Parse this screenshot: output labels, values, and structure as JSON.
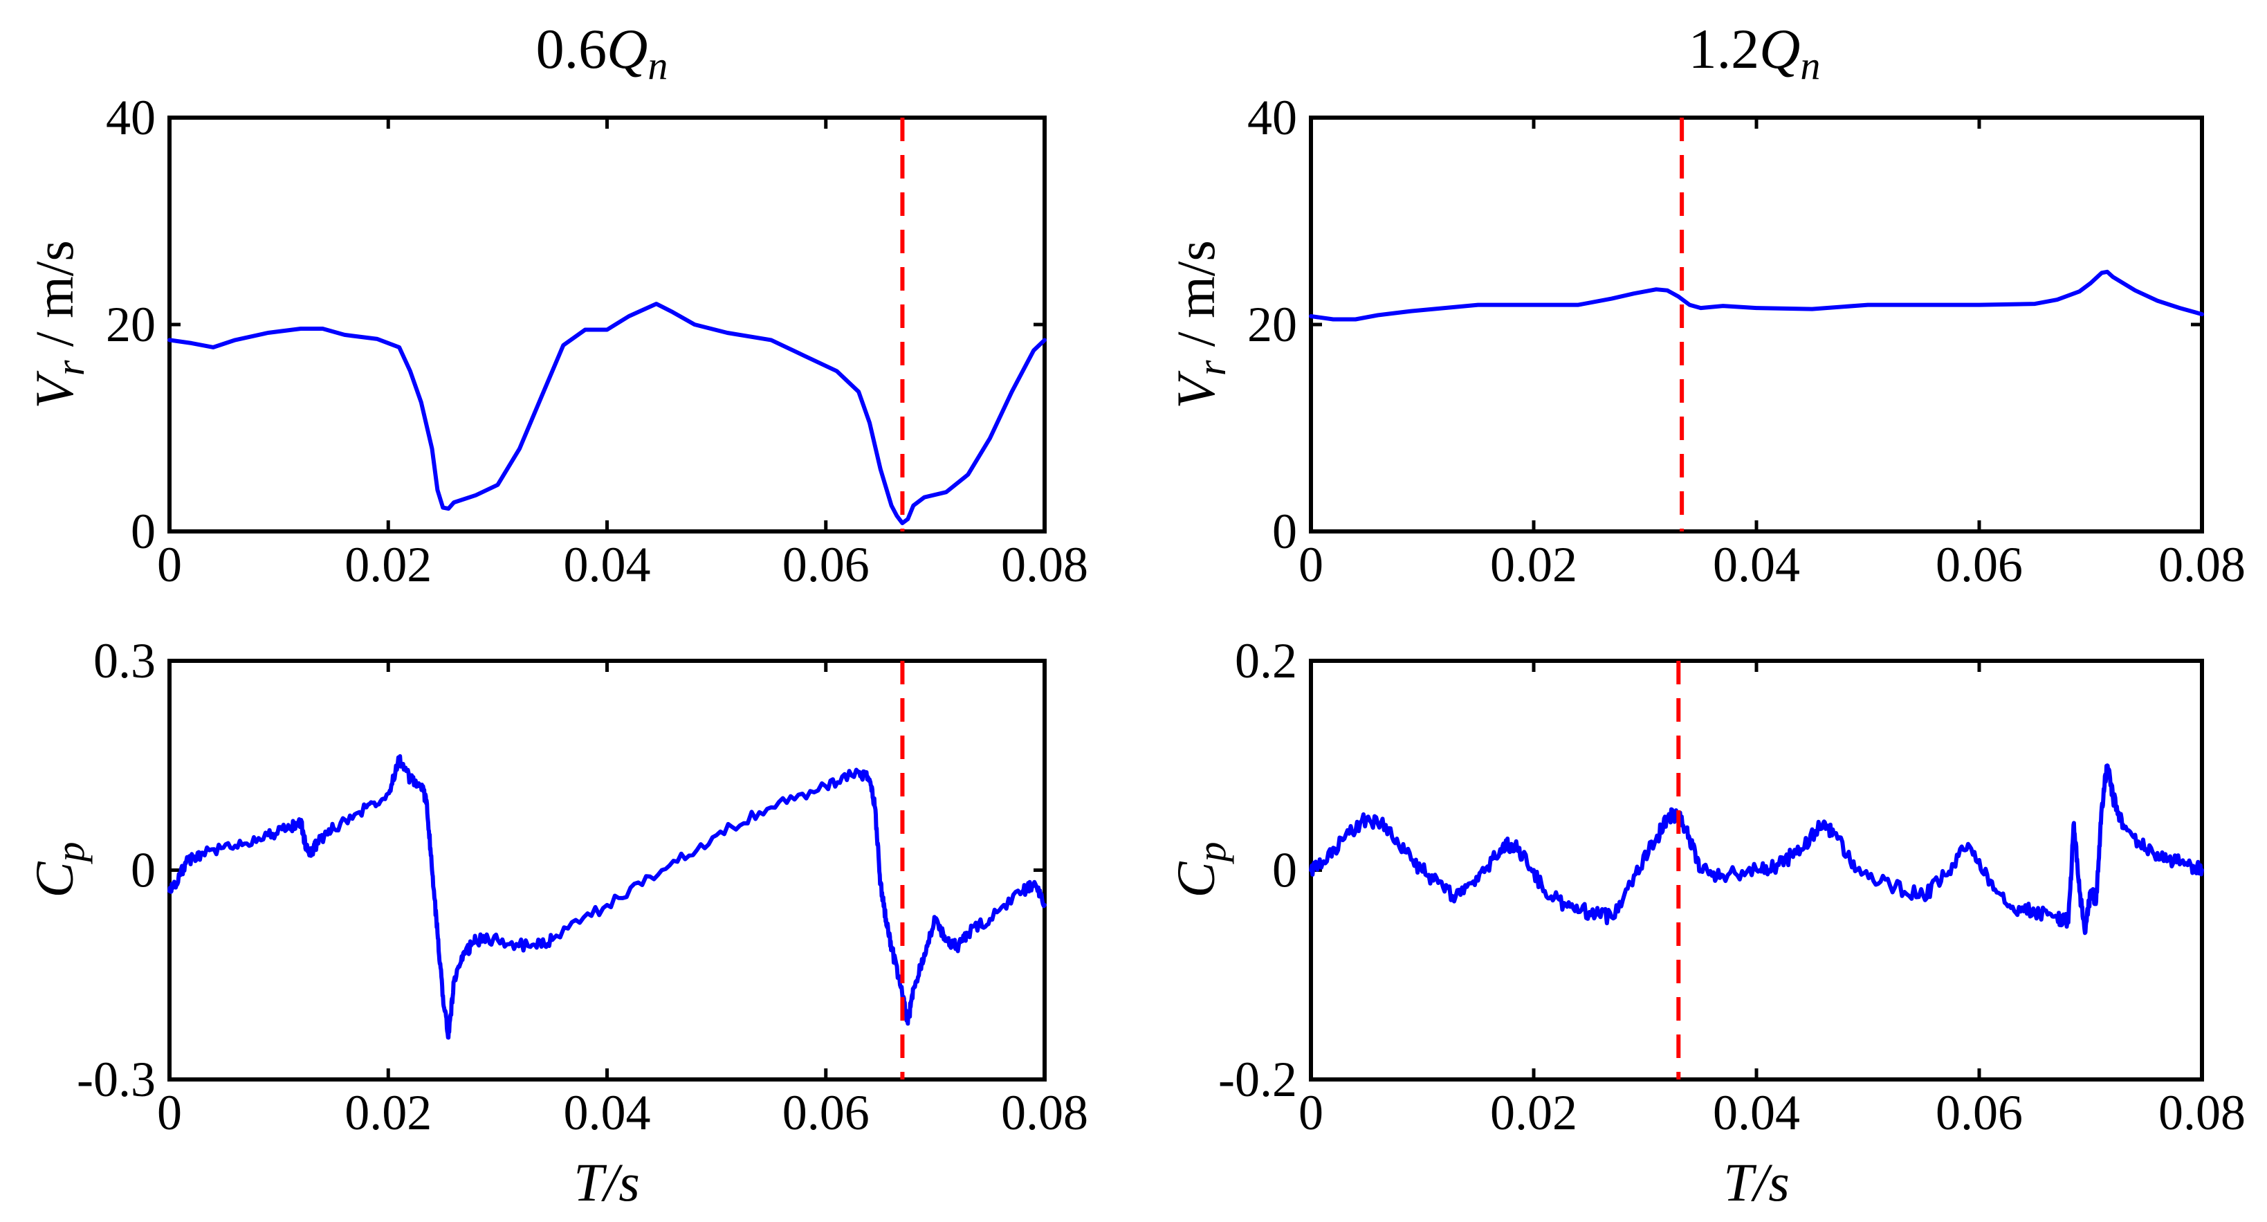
{
  "chart_data": [
    {
      "id": "p1",
      "type": "line",
      "column_title": "0.6",
      "column_title_var": "Q",
      "column_title_sub": "n",
      "xlim": [
        0,
        0.08
      ],
      "ylim": [
        0,
        40
      ],
      "xticks": [
        "0",
        "0.02",
        "0.04",
        "0.06",
        "0.08"
      ],
      "yticks": [
        "0",
        "20",
        "40"
      ],
      "xlabel": "",
      "ylabel": "V_r / m/s",
      "ylabel_parts": {
        "var": "V",
        "sub": "r",
        "unit": " / m/s"
      },
      "marker_x": 0.067,
      "grid": false,
      "series": [
        {
          "name": "V_r",
          "color": "#0000ff",
          "noise": 0,
          "x": [
            0,
            0.002,
            0.004,
            0.006,
            0.009,
            0.012,
            0.014,
            0.016,
            0.019,
            0.021,
            0.022,
            0.023,
            0.024,
            0.0245,
            0.025,
            0.0255,
            0.026,
            0.028,
            0.03,
            0.032,
            0.034,
            0.036,
            0.038,
            0.04,
            0.042,
            0.0445,
            0.046,
            0.048,
            0.051,
            0.055,
            0.058,
            0.061,
            0.063,
            0.064,
            0.065,
            0.066,
            0.0665,
            0.067,
            0.0675,
            0.068,
            0.069,
            0.071,
            0.073,
            0.075,
            0.077,
            0.079,
            0.08
          ],
          "y": [
            18.5,
            18.2,
            17.8,
            18.5,
            19.2,
            19.6,
            19.6,
            19.0,
            18.6,
            17.8,
            15.5,
            12.5,
            8.0,
            4.0,
            2.3,
            2.2,
            2.8,
            3.5,
            4.5,
            8.0,
            13.0,
            18.0,
            19.5,
            19.5,
            20.8,
            22.0,
            21.2,
            20.0,
            19.2,
            18.5,
            17.0,
            15.5,
            13.5,
            10.5,
            6.0,
            2.5,
            1.5,
            0.8,
            1.2,
            2.5,
            3.3,
            3.8,
            5.5,
            9.0,
            13.5,
            17.5,
            18.5
          ]
        }
      ]
    },
    {
      "id": "p2",
      "type": "line",
      "column_title": "1.2",
      "column_title_var": "Q",
      "column_title_sub": "n",
      "xlim": [
        0,
        0.08
      ],
      "ylim": [
        0,
        40
      ],
      "xticks": [
        "0",
        "0.02",
        "0.04",
        "0.06",
        "0.08"
      ],
      "yticks": [
        "0",
        "20",
        "40"
      ],
      "xlabel": "",
      "ylabel": "V_r / m/s",
      "ylabel_parts": {
        "var": "V",
        "sub": "r",
        "unit": " / m/s"
      },
      "marker_x": 0.0333,
      "grid": false,
      "series": [
        {
          "name": "V_r",
          "color": "#0000ff",
          "noise": 0,
          "x": [
            0,
            0.002,
            0.004,
            0.006,
            0.009,
            0.012,
            0.015,
            0.018,
            0.021,
            0.024,
            0.027,
            0.029,
            0.031,
            0.032,
            0.033,
            0.034,
            0.035,
            0.037,
            0.04,
            0.045,
            0.05,
            0.055,
            0.06,
            0.065,
            0.067,
            0.069,
            0.07,
            0.071,
            0.0715,
            0.072,
            0.074,
            0.076,
            0.078,
            0.08
          ],
          "y": [
            20.8,
            20.5,
            20.5,
            20.9,
            21.3,
            21.6,
            21.9,
            21.9,
            21.9,
            21.9,
            22.5,
            23.0,
            23.4,
            23.3,
            22.7,
            21.9,
            21.6,
            21.8,
            21.6,
            21.5,
            21.9,
            21.9,
            21.9,
            22.0,
            22.4,
            23.2,
            24.0,
            25.0,
            25.1,
            24.6,
            23.3,
            22.3,
            21.6,
            21.0
          ]
        }
      ]
    },
    {
      "id": "p3",
      "type": "line",
      "column_title": "",
      "xlim": [
        0,
        0.08
      ],
      "ylim": [
        -0.3,
        0.3
      ],
      "xticks": [
        "0",
        "0.02",
        "0.04",
        "0.06",
        "0.08"
      ],
      "yticks": [
        "-0.3",
        "0",
        "0.3"
      ],
      "xlabel": "T/s",
      "ylabel": "C_p",
      "ylabel_parts": {
        "var": "C",
        "sub": "p",
        "unit": ""
      },
      "marker_x": 0.067,
      "grid": false,
      "series": [
        {
          "name": "C_p",
          "color": "#0000ff",
          "noise": 0.008,
          "x": [
            0,
            0.0005,
            0.0015,
            0.003,
            0.006,
            0.009,
            0.011,
            0.012,
            0.0125,
            0.013,
            0.0135,
            0.015,
            0.018,
            0.02,
            0.021,
            0.022,
            0.023,
            0.0235,
            0.024,
            0.0245,
            0.025,
            0.0255,
            0.026,
            0.027,
            0.028,
            0.03,
            0.033,
            0.035,
            0.04,
            0.045,
            0.05,
            0.055,
            0.06,
            0.063,
            0.064,
            0.0645,
            0.065,
            0.0655,
            0.066,
            0.067,
            0.0675,
            0.068,
            0.069,
            0.07,
            0.071,
            0.072,
            0.073,
            0.075,
            0.078,
            0.079,
            0.08
          ],
          "y": [
            -0.03,
            -0.02,
            0.01,
            0.025,
            0.035,
            0.05,
            0.06,
            0.07,
            0.03,
            0.025,
            0.04,
            0.06,
            0.09,
            0.11,
            0.16,
            0.13,
            0.12,
            0.1,
            0.0,
            -0.09,
            -0.18,
            -0.24,
            -0.16,
            -0.12,
            -0.1,
            -0.1,
            -0.11,
            -0.1,
            -0.05,
            0.0,
            0.05,
            0.09,
            0.12,
            0.14,
            0.13,
            0.09,
            -0.02,
            -0.07,
            -0.11,
            -0.18,
            -0.22,
            -0.17,
            -0.12,
            -0.07,
            -0.1,
            -0.11,
            -0.09,
            -0.07,
            -0.03,
            -0.02,
            -0.05
          ]
        }
      ]
    },
    {
      "id": "p4",
      "type": "line",
      "column_title": "",
      "xlim": [
        0,
        0.08
      ],
      "ylim": [
        -0.2,
        0.2
      ],
      "xticks": [
        "0",
        "0.02",
        "0.04",
        "0.06",
        "0.08"
      ],
      "yticks": [
        "-0.2",
        "0",
        "0.2"
      ],
      "xlabel": "T/s",
      "ylabel": "C_p",
      "ylabel_parts": {
        "var": "C",
        "sub": "p",
        "unit": ""
      },
      "marker_x": 0.033,
      "grid": false,
      "series": [
        {
          "name": "C_p",
          "color": "#0000ff",
          "noise": 0.007,
          "x": [
            0,
            0.001,
            0.003,
            0.005,
            0.007,
            0.009,
            0.011,
            0.013,
            0.015,
            0.017,
            0.018,
            0.019,
            0.021,
            0.023,
            0.025,
            0.027,
            0.029,
            0.031,
            0.032,
            0.033,
            0.034,
            0.035,
            0.037,
            0.04,
            0.042,
            0.044,
            0.046,
            0.047,
            0.049,
            0.052,
            0.055,
            0.057,
            0.059,
            0.061,
            0.063,
            0.065,
            0.067,
            0.068,
            0.0685,
            0.069,
            0.0695,
            0.07,
            0.0705,
            0.071,
            0.0715,
            0.072,
            0.073,
            0.075,
            0.077,
            0.079,
            0.08
          ],
          "y": [
            0.0,
            0.005,
            0.03,
            0.05,
            0.04,
            0.01,
            -0.01,
            -0.025,
            -0.01,
            0.02,
            0.025,
            0.015,
            -0.02,
            -0.035,
            -0.04,
            -0.045,
            -0.005,
            0.03,
            0.05,
            0.055,
            0.03,
            0.0,
            -0.005,
            0.0,
            0.005,
            0.02,
            0.045,
            0.035,
            0.0,
            -0.015,
            -0.025,
            -0.005,
            0.025,
            -0.01,
            -0.035,
            -0.04,
            -0.045,
            -0.05,
            0.045,
            -0.02,
            -0.06,
            -0.02,
            -0.03,
            0.06,
            0.1,
            0.07,
            0.04,
            0.02,
            0.01,
            0.005,
            0.0
          ]
        }
      ]
    }
  ]
}
